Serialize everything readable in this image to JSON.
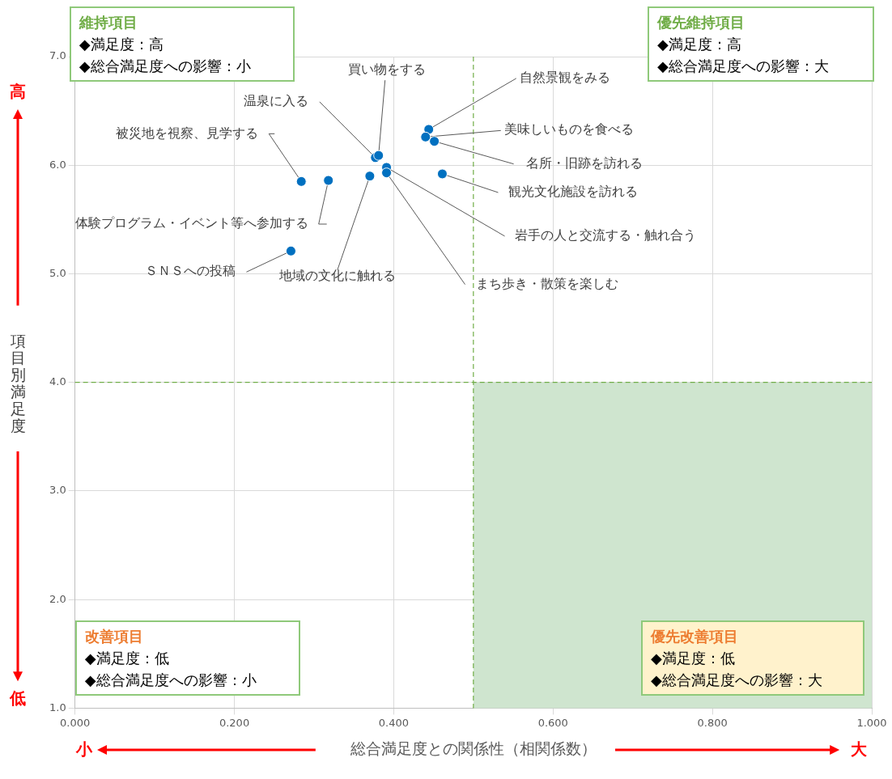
{
  "chart_data": {
    "type": "scatter",
    "xlabel": "総合満足度との関係性（相関係数）",
    "ylabel": "項目別満足度",
    "x": [
      0.444,
      0.44,
      0.451,
      0.461,
      0.391,
      0.391,
      0.37,
      0.271,
      0.318,
      0.284,
      0.377,
      0.381
    ],
    "series": [
      {
        "color": "#0070c0",
        "values": [
          6.33,
          6.26,
          6.22,
          5.92,
          5.98,
          5.93,
          5.9,
          5.21,
          5.86,
          5.85,
          6.07,
          6.09
        ]
      }
    ],
    "xlim": [
      0,
      1
    ],
    "ylim": [
      1,
      7
    ],
    "xticks": [
      {
        "value": 0,
        "label": "0.000"
      },
      {
        "value": 0.2,
        "label": "0.200"
      },
      {
        "value": 0.4,
        "label": "0.400"
      },
      {
        "value": 0.6,
        "label": "0.600"
      },
      {
        "value": 0.8,
        "label": "0.800"
      },
      {
        "value": 1,
        "label": "1.000"
      }
    ],
    "yticks": [
      {
        "value": 1,
        "label": "1.0"
      },
      {
        "value": 2,
        "label": "2.0"
      },
      {
        "value": 3,
        "label": "3.0"
      },
      {
        "value": 4,
        "label": "4.0"
      },
      {
        "value": 5,
        "label": "5.0"
      },
      {
        "value": 6,
        "label": "6.0"
      },
      {
        "value": 7,
        "label": "7.0"
      }
    ],
    "grid": true,
    "marker": "circle",
    "legend": false,
    "ref_lines": [
      {
        "axis": "x",
        "value": 0.5,
        "color": "#70ad47",
        "line_style": "dashed"
      },
      {
        "axis": "y",
        "value": 4,
        "color": "#70ad47",
        "line_style": "dashed"
      }
    ],
    "bands": [
      {
        "axis": "x",
        "from": 0.5,
        "to": 1,
        "color": "#cfe5cf"
      }
    ],
    "annotations": [
      {
        "text": "自然景観をみる",
        "x": 0.444,
        "y": 6.33
      },
      {
        "text": "美味しいものを食べる",
        "x": 0.44,
        "y": 6.26
      },
      {
        "text": "名所・旧跡を訪れる",
        "x": 0.451,
        "y": 6.22
      },
      {
        "text": "観光文化施設を訪れる",
        "x": 0.461,
        "y": 5.92
      },
      {
        "text": "岩手の人と交流する・触れ合う",
        "x": 0.391,
        "y": 5.98
      },
      {
        "text": "まち歩き・散策を楽しむ",
        "x": 0.391,
        "y": 5.93
      },
      {
        "text": "地域の文化に触れる",
        "x": 0.37,
        "y": 5.9
      },
      {
        "text": "ＳＮＳへの投稿",
        "x": 0.271,
        "y": 5.21
      },
      {
        "text": "体験プログラム・イベント等へ参加する",
        "x": 0.318,
        "y": 5.86
      },
      {
        "text": "被災地を視察、見学する",
        "x": 0.284,
        "y": 5.85
      },
      {
        "text": "温泉に入る",
        "x": 0.377,
        "y": 6.07
      },
      {
        "text": "買い物をする",
        "x": 0.381,
        "y": 6.09
      },
      "維持項目\n◆満足度：高\n◆総合満足度への影響：小",
      "優先維持項目\n◆満足度：高\n◆総合満足度への影響：大",
      "改善項目\n◆満足度：低\n◆総合満足度への影響：小",
      "優先改善項目\n◆満足度：低\n◆総合満足度への影響：大",
      "高",
      "低",
      "小",
      "大"
    ]
  }
}
